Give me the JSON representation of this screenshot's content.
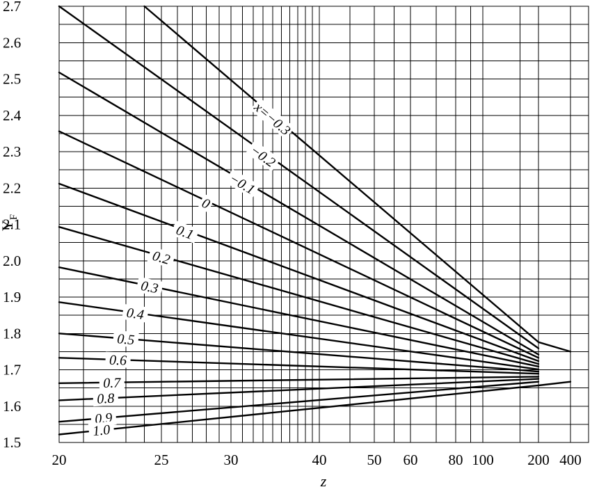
{
  "chart_data": {
    "type": "line",
    "title": "",
    "xlabel": "z",
    "ylabel": "Y_F",
    "ylabel_main": "Y",
    "ylabel_sub": "F",
    "ylim": [
      1.5,
      2.7
    ],
    "y_ticks": [
      "1.5",
      "1.6",
      "1.7",
      "1.8",
      "1.9",
      "2.0",
      "2.1",
      "2.2",
      "2.3",
      "2.4",
      "2.5",
      "2.6",
      "2.7"
    ],
    "x_tick_labels": [
      {
        "value": 20,
        "label": "20"
      },
      {
        "value": 25,
        "label": "25"
      },
      {
        "value": 30,
        "label": "30"
      },
      {
        "value": 40,
        "label": "40"
      },
      {
        "value": 50,
        "label": "50"
      },
      {
        "value": 60,
        "label": "60"
      },
      {
        "value": 80,
        "label": "80"
      },
      {
        "value": 100,
        "label": "100"
      },
      {
        "value": 200,
        "label": "200"
      },
      {
        "value": 400,
        "label": "400"
      }
    ],
    "x_gridlines": [
      21,
      23,
      24,
      25,
      26,
      27,
      28,
      29,
      30,
      31,
      32,
      33,
      34,
      35,
      36,
      37,
      38,
      39,
      40,
      45,
      50,
      55,
      60,
      70,
      80,
      90,
      100,
      150,
      200,
      400
    ],
    "grid": true,
    "series": [
      {
        "name": "x=-0.3",
        "label": "x=−0.3",
        "x": [
          24,
          200,
          400
        ],
        "y": [
          2.7,
          1.776,
          1.75
        ]
      },
      {
        "name": "-0.2",
        "label": "−0.2",
        "x": [
          20,
          200
        ],
        "y": [
          2.7,
          1.759
        ]
      },
      {
        "name": "-0.1",
        "label": "−0.1",
        "x": [
          20,
          200
        ],
        "y": [
          2.518,
          1.742
        ]
      },
      {
        "name": "0",
        "label": "0",
        "x": [
          20,
          200
        ],
        "y": [
          2.356,
          1.733
        ]
      },
      {
        "name": "0.1",
        "label": "0.1",
        "x": [
          20,
          200
        ],
        "y": [
          2.212,
          1.724
        ]
      },
      {
        "name": "0.2",
        "label": "0.2",
        "x": [
          20,
          200
        ],
        "y": [
          2.093,
          1.716
        ]
      },
      {
        "name": "0.3",
        "label": "0.3",
        "x": [
          20,
          200
        ],
        "y": [
          1.982,
          1.709
        ]
      },
      {
        "name": "0.4",
        "label": "0.4",
        "x": [
          20,
          200
        ],
        "y": [
          1.886,
          1.701
        ]
      },
      {
        "name": "0.5",
        "label": "0.5",
        "x": [
          20,
          200
        ],
        "y": [
          1.8,
          1.695
        ]
      },
      {
        "name": "0.6",
        "label": "0.6",
        "x": [
          20,
          200
        ],
        "y": [
          1.733,
          1.689
        ]
      },
      {
        "name": "0.7",
        "label": "0.7",
        "x": [
          20,
          200
        ],
        "y": [
          1.663,
          1.681
        ]
      },
      {
        "name": "0.8",
        "label": "0.8",
        "x": [
          20,
          200
        ],
        "y": [
          1.616,
          1.675
        ]
      },
      {
        "name": "0.9",
        "label": "0.9",
        "x": [
          20,
          200
        ],
        "y": [
          1.557,
          1.667
        ]
      },
      {
        "name": "1.0",
        "label": "1.0",
        "x": [
          20,
          200,
          400
        ],
        "y": [
          1.522,
          1.657,
          1.667
        ]
      }
    ],
    "curve_label_anchor_z": [
      34,
      33,
      31,
      28,
      26.5,
      25,
      24.3,
      23.5,
      23,
      22.6,
      22.3,
      22,
      21.9,
      21.8
    ]
  }
}
